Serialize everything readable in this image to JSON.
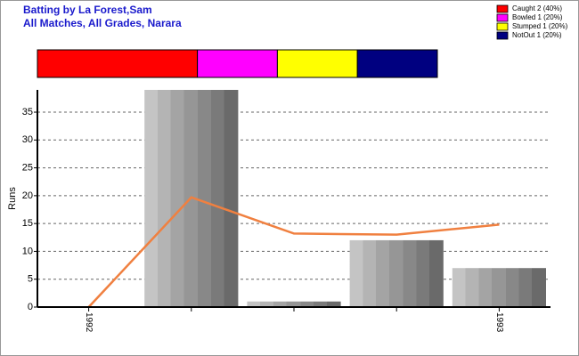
{
  "chart_data": [
    {
      "type": "proportion",
      "series": [
        {
          "name": "Caught 2 (40%)",
          "color": "#ff0000",
          "values": [
            40
          ]
        },
        {
          "name": "Bowled 1 (20%)",
          "color": "#ff00ff",
          "values": [
            20
          ]
        },
        {
          "name": "Stumped 1 (20%)",
          "color": "#ffff00",
          "values": [
            20
          ]
        },
        {
          "name": "NotOut 1 (20%)",
          "color": "#000080",
          "values": [
            20
          ]
        }
      ]
    },
    {
      "type": "bar",
      "title": "Batting by La Forest,Sam",
      "subtitle": "All Matches, All Grades, Narara",
      "y_label": "Runs",
      "categories": [
        "1992",
        null,
        null,
        null,
        "1993"
      ],
      "series": [
        {
          "type": "bar",
          "color": "#a0a0a0",
          "values": [
            0,
            39,
            1,
            12,
            7
          ]
        },
        {
          "type": "line",
          "color": "#f08040",
          "values": [
            0,
            19.7,
            13.2,
            13,
            14.8
          ]
        }
      ],
      "ylim": [
        0,
        39
      ],
      "yticks": [
        0,
        5,
        10,
        15,
        20,
        25,
        30,
        35
      ],
      "grid": true
    }
  ]
}
